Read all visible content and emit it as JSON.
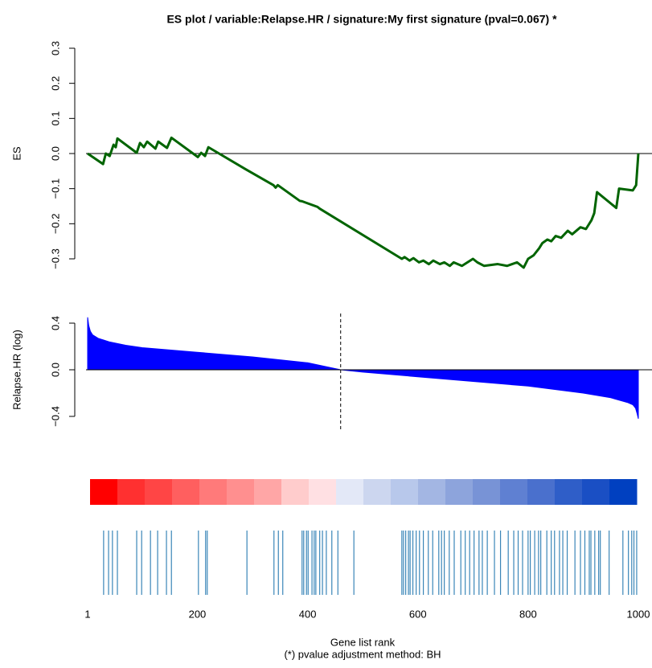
{
  "chart_data": [
    {
      "type": "line",
      "title": "ES  plot /  variable:Relapse.HR / signature:My first signature (pval=0.067) *",
      "ylabel": "ES",
      "color": "#006400",
      "x": [
        1,
        29,
        34,
        41,
        48,
        52,
        55,
        90,
        96,
        103,
        109,
        124,
        129,
        145,
        153,
        201,
        207,
        214,
        220,
        288,
        338,
        342,
        346,
        386,
        390,
        418,
        422,
        571,
        576,
        585,
        592,
        602,
        610,
        620,
        628,
        640,
        648,
        658,
        665,
        680,
        700,
        708,
        720,
        745,
        762,
        780,
        792,
        800,
        810,
        820,
        826,
        835,
        842,
        850,
        860,
        872,
        880,
        895,
        905,
        915,
        920,
        925,
        960,
        965,
        990,
        996,
        1000
      ],
      "values": [
        0,
        -0.03,
        0,
        -0.007,
        0.025,
        0.018,
        0.043,
        0.002,
        0.03,
        0.018,
        0.034,
        0.014,
        0.034,
        0.016,
        0.045,
        -0.01,
        0.002,
        -0.007,
        0.018,
        -0.045,
        -0.09,
        -0.097,
        -0.09,
        -0.135,
        -0.136,
        -0.152,
        -0.157,
        -0.3,
        -0.295,
        -0.305,
        -0.298,
        -0.31,
        -0.305,
        -0.315,
        -0.305,
        -0.315,
        -0.31,
        -0.32,
        -0.31,
        -0.32,
        -0.3,
        -0.31,
        -0.32,
        -0.315,
        -0.32,
        -0.31,
        -0.325,
        -0.3,
        -0.29,
        -0.27,
        -0.255,
        -0.245,
        -0.25,
        -0.235,
        -0.24,
        -0.22,
        -0.23,
        -0.21,
        -0.215,
        -0.19,
        -0.17,
        -0.11,
        -0.155,
        -0.1,
        -0.105,
        -0.09,
        0
      ],
      "xlim": [
        1,
        1000
      ],
      "ylim": [
        -0.3,
        0.3
      ],
      "yticks": [
        {
          "value": -0.3,
          "label": "−0.3"
        },
        {
          "value": -0.2,
          "label": "−0.2"
        },
        {
          "value": -0.1,
          "label": "−0.1"
        },
        {
          "value": 0,
          "label": "0.0"
        },
        0.1,
        0.2,
        0.3
      ]
    },
    {
      "type": "area",
      "ylabel": "Relapse.HR (log)",
      "color": "#0000ff",
      "x": [
        1,
        3,
        6,
        10,
        20,
        40,
        70,
        100,
        150,
        200,
        300,
        400,
        460,
        500,
        600,
        700,
        800,
        900,
        950,
        980,
        990,
        995,
        998,
        1000
      ],
      "values": [
        0.45,
        0.38,
        0.33,
        0.3,
        0.27,
        0.24,
        0.21,
        0.19,
        0.17,
        0.15,
        0.11,
        0.06,
        0,
        -0.02,
        -0.06,
        -0.1,
        -0.14,
        -0.2,
        -0.24,
        -0.28,
        -0.3,
        -0.33,
        -0.38,
        -0.42
      ],
      "vline": 460,
      "xlim": [
        1,
        1000
      ],
      "ylim": [
        -0.4,
        0.4
      ],
      "yticks": [
        {
          "value": -0.4,
          "label": "−0.4"
        },
        {
          "value": 0,
          "label": "0.0"
        },
        0.4
      ]
    },
    {
      "type": "heatmap",
      "colors": [
        "#ff0000",
        "#ff3030",
        "#ff4545",
        "#ff5f5f",
        "#ff7a7a",
        "#ff8f8f",
        "#ffa6a6",
        "#ffcccc",
        "#ffe0e3",
        "#e3e8f7",
        "#ccd6ef",
        "#b8c8eb",
        "#a3b6e3",
        "#8da4dc",
        "#7893d6",
        "#5f80d2",
        "#4a70cd",
        "#2f5ec8",
        "#1a4fc4",
        "#0040c0"
      ]
    },
    {
      "type": "rug",
      "color": "#3a86b8",
      "xlabel": "Gene list rank",
      "note": "(*) pvalue adjustment method: BH",
      "x": [
        30,
        39,
        46,
        55,
        90,
        99,
        115,
        128,
        144,
        153,
        202,
        215,
        218,
        290,
        339,
        347,
        355,
        390,
        393,
        398,
        401,
        408,
        412,
        415,
        422,
        427,
        434,
        444,
        455,
        484,
        571,
        574,
        578,
        583,
        586,
        591,
        597,
        603,
        610,
        619,
        627,
        638,
        643,
        648,
        657,
        666,
        678,
        686,
        694,
        702,
        711,
        717,
        726,
        739,
        750,
        764,
        774,
        782,
        790,
        800,
        804,
        812,
        819,
        823,
        834,
        842,
        848,
        857,
        863,
        871,
        885,
        895,
        903,
        911,
        914,
        921,
        928,
        931,
        947,
        972,
        982,
        988,
        992,
        997
      ],
      "xlim": [
        1,
        1000
      ],
      "xticks": [
        1,
        200,
        400,
        600,
        800,
        1000
      ]
    }
  ]
}
